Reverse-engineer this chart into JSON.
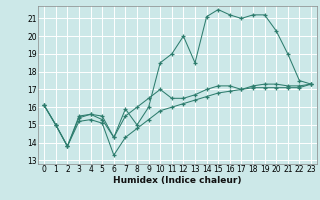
{
  "xlabel": "Humidex (Indice chaleur)",
  "bg_color": "#cce8e8",
  "grid_color": "#ffffff",
  "line_color": "#2e7d6e",
  "xlim": [
    -0.5,
    23.5
  ],
  "ylim": [
    12.8,
    21.7
  ],
  "yticks": [
    13,
    14,
    15,
    16,
    17,
    18,
    19,
    20,
    21
  ],
  "xticks": [
    0,
    1,
    2,
    3,
    4,
    5,
    6,
    7,
    8,
    9,
    10,
    11,
    12,
    13,
    14,
    15,
    16,
    17,
    18,
    19,
    20,
    21,
    22,
    23
  ],
  "line1_x": [
    0,
    1,
    2,
    3,
    4,
    5,
    6,
    7,
    8,
    9,
    10,
    11,
    12,
    13,
    14,
    15,
    16,
    17,
    18,
    19,
    20,
    21,
    22,
    23
  ],
  "line1_y": [
    16.1,
    15.0,
    13.8,
    15.4,
    15.6,
    15.3,
    14.3,
    15.9,
    15.0,
    16.0,
    18.5,
    19.0,
    20.0,
    18.5,
    21.1,
    21.5,
    21.2,
    21.0,
    21.2,
    21.2,
    20.3,
    19.0,
    17.5,
    17.3
  ],
  "line2_x": [
    0,
    1,
    2,
    3,
    4,
    5,
    6,
    7,
    8,
    9,
    10,
    11,
    12,
    13,
    14,
    15,
    16,
    17,
    18,
    19,
    20,
    21,
    22,
    23
  ],
  "line2_y": [
    16.1,
    15.0,
    13.8,
    15.5,
    15.6,
    15.5,
    14.3,
    15.5,
    16.0,
    16.5,
    17.0,
    16.5,
    16.5,
    16.7,
    17.0,
    17.2,
    17.2,
    17.0,
    17.2,
    17.3,
    17.3,
    17.2,
    17.2,
    17.3
  ],
  "line3_x": [
    0,
    1,
    2,
    3,
    4,
    5,
    6,
    7,
    8,
    9,
    10,
    11,
    12,
    13,
    14,
    15,
    16,
    17,
    18,
    19,
    20,
    21,
    22,
    23
  ],
  "line3_y": [
    16.1,
    15.0,
    13.8,
    15.2,
    15.3,
    15.1,
    13.3,
    14.3,
    14.8,
    15.3,
    15.8,
    16.0,
    16.2,
    16.4,
    16.6,
    16.8,
    16.9,
    17.0,
    17.1,
    17.1,
    17.1,
    17.1,
    17.1,
    17.3
  ],
  "xlabel_fontsize": 6.5,
  "tick_fontsize": 5.5
}
